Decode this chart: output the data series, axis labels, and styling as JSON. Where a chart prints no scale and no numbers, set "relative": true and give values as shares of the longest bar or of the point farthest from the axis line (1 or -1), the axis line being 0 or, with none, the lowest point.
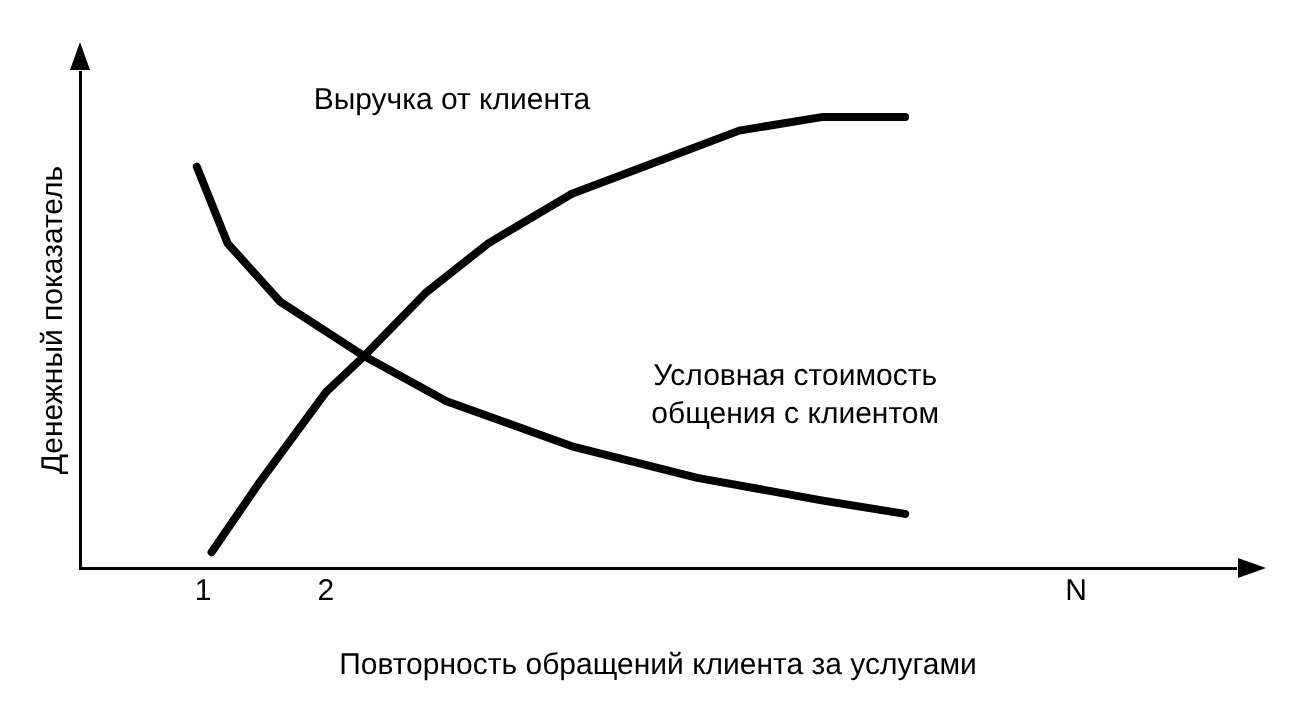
{
  "chart_data": {
    "type": "line",
    "relative": true,
    "xlabel": "Повторность обращений клиента за услугами",
    "ylabel": "Денежный показатель",
    "xlim": [
      0,
      9.4
    ],
    "xticks": [
      1,
      2,
      {
        "value": 8.1,
        "label": "N"
      }
    ],
    "tick_labels": "x",
    "marker": "none",
    "line_style": "solid",
    "series": [
      {
        "name": "Выручка от клиента",
        "color": "#000000",
        "x": [
          1.07,
          1.46,
          2.0,
          2.31,
          2.81,
          3.32,
          4.0,
          4.68,
          5.36,
          6.03,
          6.71
        ],
        "values": [
          0.035,
          0.19,
          0.39,
          0.47,
          0.61,
          0.72,
          0.83,
          0.9,
          0.97,
          1.0,
          1.0
        ]
      },
      {
        "name": "Условная стоимость общения с клиентом",
        "color": "#000000",
        "x": [
          0.95,
          1.2,
          1.63,
          2.31,
          2.98,
          4.0,
          5.02,
          6.03,
          6.71
        ],
        "values": [
          0.89,
          0.72,
          0.59,
          0.47,
          0.37,
          0.27,
          0.2,
          0.15,
          0.12
        ]
      }
    ]
  }
}
